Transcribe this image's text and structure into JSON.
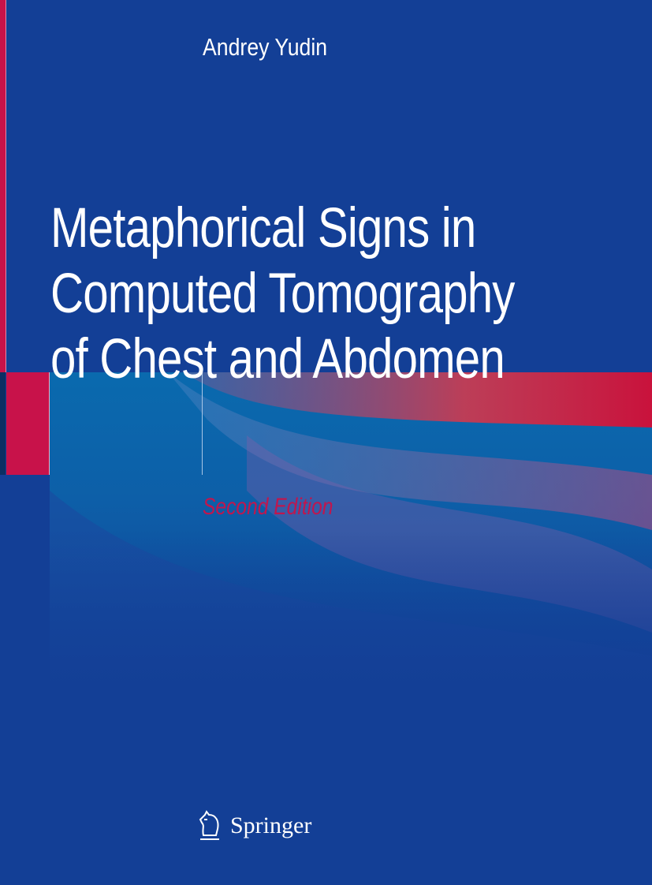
{
  "cover": {
    "author": "Andrey Yudin",
    "title_lines": [
      "Metaphorical Signs in",
      "Computed Tomography",
      "of Chest and Abdomen"
    ],
    "edition": "Second Edition",
    "publisher": "Springer",
    "colors": {
      "background": "#133f96",
      "accent_red": "#c8124a",
      "edition_text": "#c0164e"
    }
  }
}
